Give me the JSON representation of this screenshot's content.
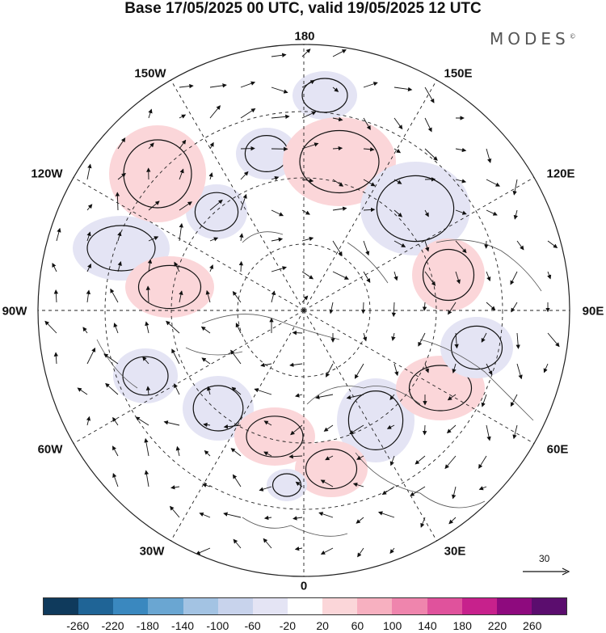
{
  "title": "Base 17/05/2025 00 UTC, valid 19/05/2025 12 UTC",
  "brand": "MODES",
  "brand_mark": "©",
  "lon_labels": [
    {
      "key": "180",
      "text": "180"
    },
    {
      "key": "150e",
      "text": "150E"
    },
    {
      "key": "120e",
      "text": "120E"
    },
    {
      "key": "90e",
      "text": "90E"
    },
    {
      "key": "60e",
      "text": "60E"
    },
    {
      "key": "30e",
      "text": "30E"
    },
    {
      "key": "0",
      "text": "0"
    },
    {
      "key": "30w",
      "text": "30W"
    },
    {
      "key": "60w",
      "text": "60W"
    },
    {
      "key": "90w",
      "text": "90W"
    },
    {
      "key": "120w",
      "text": "120W"
    },
    {
      "key": "150w",
      "text": "150W"
    }
  ],
  "reference_vector": {
    "label": "30"
  },
  "colorbar": {
    "colors": [
      "#0f3a5c",
      "#1f6496",
      "#3a88bf",
      "#6aa6d2",
      "#a3c3e3",
      "#c8d3ec",
      "#e4e4f4",
      "#ffffff",
      "#fbd6d9",
      "#f7b0c0",
      "#ef85ad",
      "#e0529c",
      "#c7218c",
      "#8e0a7e",
      "#5b0d6e"
    ],
    "ticks": [
      "-260",
      "-220",
      "-180",
      "-140",
      "-100",
      "-60",
      "-20",
      "20",
      "60",
      "100",
      "140",
      "180",
      "220",
      "260"
    ]
  },
  "anomalies": [
    {
      "name": "blue-nw-pacific-1",
      "sign": -1,
      "level": 4
    },
    {
      "name": "blue-nw-pacific-2",
      "sign": -1,
      "level": 4
    },
    {
      "name": "magenta-bering",
      "sign": 1,
      "level": 7
    },
    {
      "name": "blue-siberia-east",
      "sign": -1,
      "level": 6
    },
    {
      "name": "magenta-siberia",
      "sign": 1,
      "level": 5
    },
    {
      "name": "blue-canada-west",
      "sign": -1,
      "level": 6
    },
    {
      "name": "blue-alaska",
      "sign": -1,
      "level": 4
    },
    {
      "name": "magenta-canada",
      "sign": 1,
      "level": 5
    },
    {
      "name": "blue-labrador",
      "sign": -1,
      "level": 4
    },
    {
      "name": "blue-atlantic",
      "sign": -1,
      "level": 5
    },
    {
      "name": "magenta-nw-europe",
      "sign": 1,
      "level": 5
    },
    {
      "name": "blue-scandinavia",
      "sign": -1,
      "level": 6
    },
    {
      "name": "pink-asia",
      "sign": 1,
      "level": 4
    },
    {
      "name": "blue-central-asia",
      "sign": -1,
      "level": 3
    },
    {
      "name": "pink-pacific",
      "sign": 1,
      "level": 2
    },
    {
      "name": "pink-europe-south",
      "sign": 1,
      "level": 3
    },
    {
      "name": "blue-mediterranean",
      "sign": -1,
      "level": 3
    }
  ]
}
